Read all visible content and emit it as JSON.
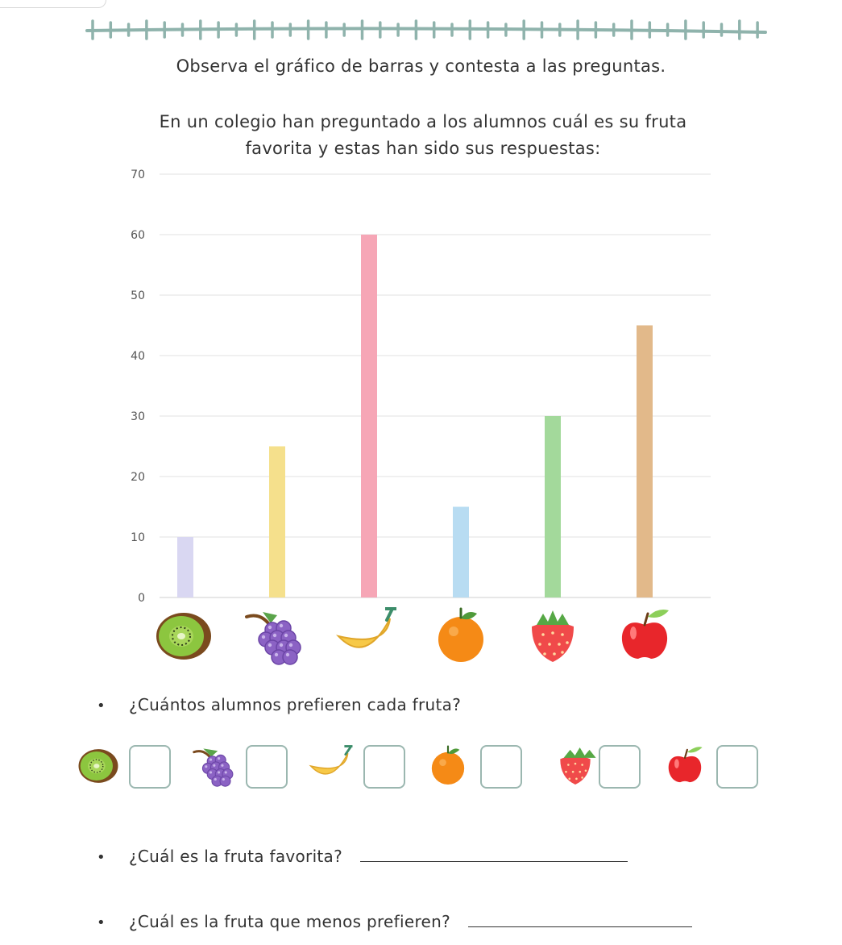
{
  "header": {
    "instruction": "Observa el gráfico de barras y contesta a las preguntas.",
    "context_line1": "En un colegio han preguntado a los alumnos cuál es su fruta",
    "context_line2": "favorita y estas han sido sus respuestas:"
  },
  "chart_data": {
    "type": "bar",
    "categories": [
      "kiwi-icon",
      "grapes-icon",
      "banana-icon",
      "orange-icon",
      "strawberry-icon",
      "apple-icon"
    ],
    "values": [
      10,
      25,
      60,
      15,
      30,
      45
    ],
    "colors": [
      "#d9d7f2",
      "#f5e08c",
      "#f6a6b6",
      "#b8dcf2",
      "#a3d99b",
      "#e2b98a"
    ],
    "yticks": [
      "0",
      "10",
      "20",
      "30",
      "40",
      "50",
      "60",
      "70"
    ],
    "ylim": [
      0,
      70
    ],
    "grid": true
  },
  "questions": {
    "q1": "¿Cuántos alumnos prefieren cada fruta?",
    "q2": "¿Cuál es la fruta favorita?",
    "q3": "¿Cuál es la fruta que menos prefieren?",
    "bullet": "•"
  },
  "theme": {
    "stitch_color": "#8fb3ac",
    "box_border": "#9bb7b0"
  }
}
